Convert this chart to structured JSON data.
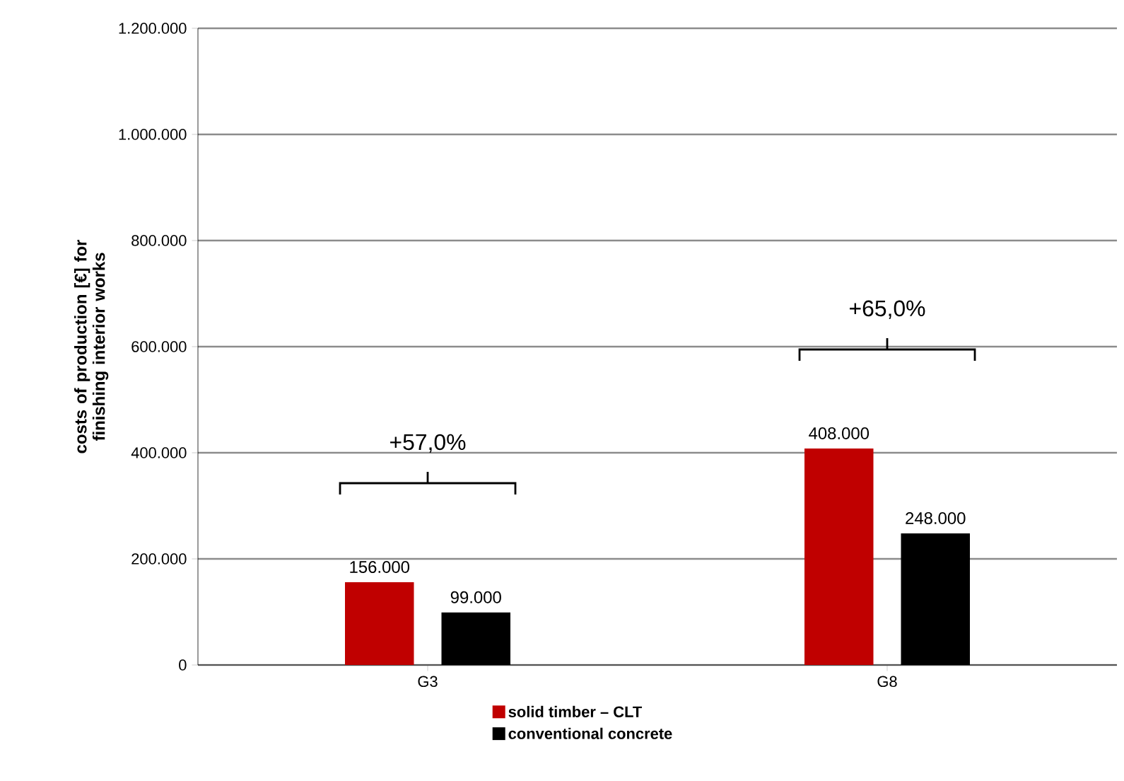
{
  "chart_data": {
    "type": "bar",
    "ylabel": "costs of production [€] for finishing interior works",
    "categories": [
      "G3",
      "G8"
    ],
    "series": [
      {
        "name": "solid timber – CLT",
        "color": "#c00000",
        "values": [
          156000,
          408000
        ],
        "value_labels": [
          "156.000",
          "408.000"
        ]
      },
      {
        "name": "conventional concrete",
        "color": "#000000",
        "values": [
          99000,
          248000
        ],
        "value_labels": [
          "99.000",
          "248.000"
        ]
      }
    ],
    "ylim": [
      0,
      1200000
    ],
    "yticks": [
      {
        "value": 0,
        "label": "0"
      },
      {
        "value": 200000,
        "label": "200.000"
      },
      {
        "value": 400000,
        "label": "400.000"
      },
      {
        "value": 600000,
        "label": "600.000"
      },
      {
        "value": 800000,
        "label": "800.000"
      },
      {
        "value": 1000000,
        "label": "1.000.000"
      },
      {
        "value": 1200000,
        "label": "1.200.000"
      }
    ],
    "grid": "y",
    "legend": "bottom",
    "annotations": [
      "+57,0%",
      "+65,0%"
    ]
  }
}
